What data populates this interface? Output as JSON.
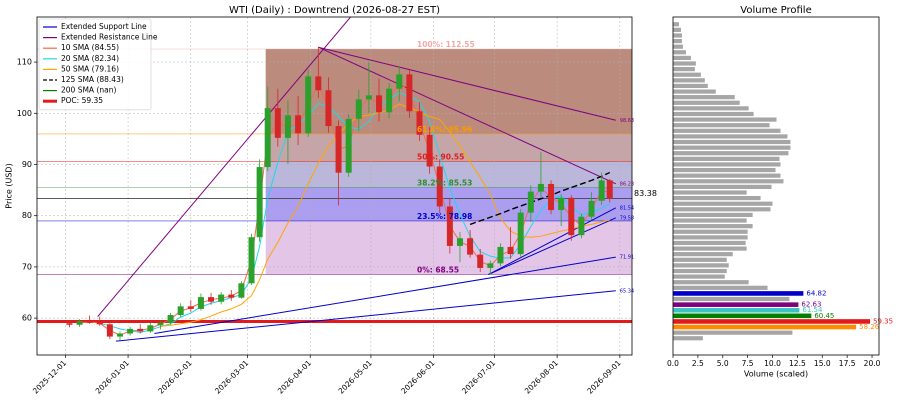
{
  "chart_data": [
    {
      "type": "candlestick",
      "title": "WTI (Daily) : Downtrend (2026-08-27 EST)",
      "y_label": "Price (USD)",
      "x": [
        "2025-12-03",
        "2025-12-08",
        "2025-12-13",
        "2025-12-18",
        "2025-12-23",
        "2025-12-28",
        "2026-01-02",
        "2026-01-07",
        "2026-01-12",
        "2026-01-17",
        "2026-01-22",
        "2026-01-27",
        "2026-02-01",
        "2026-02-06",
        "2026-02-11",
        "2026-02-16",
        "2026-02-21",
        "2026-02-26",
        "2026-03-03",
        "2026-03-07",
        "2026-03-11",
        "2026-03-16",
        "2026-03-21",
        "2026-03-26",
        "2026-03-31",
        "2026-04-05",
        "2026-04-10",
        "2026-04-15",
        "2026-04-20",
        "2026-04-25",
        "2026-04-30",
        "2026-05-05",
        "2026-05-10",
        "2026-05-15",
        "2026-05-20",
        "2026-05-25",
        "2026-05-30",
        "2026-06-04",
        "2026-06-09",
        "2026-06-14",
        "2026-06-19",
        "2026-06-24",
        "2026-06-29",
        "2026-07-04",
        "2026-07-09",
        "2026-07-14",
        "2026-07-19",
        "2026-07-24",
        "2026-07-29",
        "2026-08-03",
        "2026-08-08",
        "2026-08-13",
        "2026-08-18",
        "2026-08-23",
        "2026-08-27"
      ],
      "open": [
        59.0,
        58.7,
        59.4,
        59.2,
        58.8,
        56.4,
        57.0,
        57.9,
        57.4,
        58.6,
        59.1,
        60.6,
        62.3,
        61.8,
        64.1,
        63.2,
        64.6,
        64.0,
        66.8,
        75.8,
        89.5,
        101.0,
        95.2,
        99.6,
        96.1,
        107.2,
        104.5,
        97.5,
        88.4,
        98.9,
        102.7,
        103.5,
        100.2,
        104.8,
        107.6,
        100.4,
        95.8,
        89.6,
        81.8,
        74.1,
        75.6,
        72.4,
        69.8,
        70.7,
        73.9,
        72.5,
        80.6,
        84.7,
        86.2,
        81.1,
        83.5,
        76.2,
        79.8,
        82.9,
        86.9
      ],
      "high": [
        59.6,
        59.8,
        60.5,
        60.3,
        59.0,
        57.4,
        58.3,
        58.8,
        59.2,
        59.5,
        61.0,
        62.9,
        63.5,
        64.8,
        64.9,
        65.1,
        65.5,
        67.2,
        76.5,
        91.0,
        105.2,
        104.8,
        102.5,
        103.4,
        108.5,
        112.9,
        107.0,
        98.6,
        99.8,
        104.6,
        110.0,
        106.8,
        105.9,
        109.2,
        108.4,
        102.2,
        97.3,
        91.0,
        83.4,
        76.8,
        77.2,
        73.5,
        71.2,
        74.6,
        77.8,
        81.3,
        85.9,
        92.4,
        86.9,
        84.2,
        84.0,
        80.4,
        84.6,
        88.4,
        87.2
      ],
      "low": [
        58.2,
        58.3,
        58.9,
        58.5,
        55.9,
        55.6,
        56.6,
        57.0,
        57.1,
        57.8,
        58.7,
        60.2,
        61.2,
        61.5,
        62.6,
        62.7,
        63.4,
        63.8,
        66.5,
        74.9,
        88.7,
        93.5,
        90.1,
        93.8,
        95.4,
        103.0,
        96.2,
        82.0,
        87.6,
        96.5,
        100.1,
        98.4,
        99.0,
        102.3,
        99.1,
        94.6,
        88.2,
        80.5,
        72.6,
        70.9,
        71.8,
        69.0,
        68.5,
        70.1,
        71.6,
        72.0,
        78.8,
        83.5,
        80.3,
        78.0,
        75.1,
        75.6,
        79.1,
        82.1,
        82.6
      ],
      "close": [
        58.7,
        59.4,
        59.2,
        58.8,
        56.4,
        57.0,
        57.9,
        57.4,
        58.6,
        59.1,
        60.6,
        62.3,
        61.8,
        64.1,
        63.2,
        64.6,
        64.0,
        66.8,
        75.8,
        89.5,
        101.0,
        95.2,
        99.6,
        96.1,
        107.2,
        104.5,
        97.5,
        88.4,
        98.9,
        102.7,
        103.5,
        100.2,
        104.8,
        107.6,
        100.4,
        95.8,
        89.6,
        81.8,
        74.1,
        75.6,
        72.4,
        69.8,
        70.7,
        73.9,
        72.5,
        80.6,
        84.7,
        86.2,
        81.1,
        83.5,
        76.2,
        79.8,
        82.9,
        86.9,
        83.38
      ],
      "up_color": "#2ca02c",
      "down_color": "#d62728",
      "xlim": [
        "2025-11-17",
        "2026-09-07"
      ],
      "xticks": [
        "2025-12-01",
        "2026-01-01",
        "2026-02-01",
        "2026-03-01",
        "2026-04-01",
        "2026-05-01",
        "2026-06-01",
        "2026-07-01",
        "2026-08-01",
        "2026-09-01"
      ],
      "ylim": [
        52.8,
        118.8
      ],
      "yticks": [
        60,
        70,
        80,
        90,
        100,
        110
      ],
      "grid": true,
      "legend": "upper left",
      "trend_lines": [
        {
          "name": "Extended Support Line",
          "color": "#0000cd",
          "segments": [
            {
              "x": [
                "2025-12-26",
                "2026-08-30"
              ],
              "y": [
                55.5,
                65.34
              ]
            },
            {
              "x": [
                "2026-01-14",
                "2026-08-30"
              ],
              "y": [
                57.0,
                71.91
              ]
            },
            {
              "x": [
                "2026-06-28",
                "2026-08-30"
              ],
              "y": [
                68.5,
                79.58
              ]
            },
            {
              "x": [
                "2026-06-28",
                "2026-08-30"
              ],
              "y": [
                68.5,
                81.54
              ]
            }
          ]
        },
        {
          "name": "Extended Resistance Line",
          "color": "#800080",
          "segments": [
            {
              "x": [
                "2025-12-17",
                "2026-05-01"
              ],
              "y": [
                60.3,
                123.5
              ]
            },
            {
              "x": [
                "2026-04-05",
                "2026-08-30"
              ],
              "y": [
                112.9,
                98.63
              ]
            },
            {
              "x": [
                "2026-04-05",
                "2026-08-30"
              ],
              "y": [
                112.9,
                86.23
              ]
            }
          ]
        }
      ],
      "series": [
        {
          "name": "10 SMA (84.55)",
          "color": "#f4694a",
          "values": [
            null,
            59.0,
            59.3,
            59.0,
            57.6,
            56.7,
            57.5,
            57.6,
            58.0,
            58.8,
            59.8,
            61.4,
            62.0,
            63.0,
            63.6,
            63.9,
            64.3,
            65.4,
            71.3,
            82.6,
            95.2,
            98.1,
            97.4,
            97.8,
            101.6,
            105.8,
            101.0,
            93.0,
            93.6,
            100.8,
            103.1,
            101.8,
            102.5,
            106.2,
            104.0,
            98.1,
            92.7,
            85.7,
            78.0,
            74.9,
            74.0,
            71.1,
            70.2,
            72.3,
            73.2,
            76.5,
            82.6,
            85.4,
            83.6,
            82.3,
            79.8,
            78.0,
            81.3,
            84.9,
            84.55
          ]
        },
        {
          "name": "20 SMA (82.34)",
          "color": "#1ed8e8",
          "values": [
            null,
            null,
            null,
            59.0,
            58.5,
            57.9,
            57.5,
            57.2,
            57.7,
            58.3,
            58.9,
            60.2,
            61.0,
            62.2,
            62.9,
            63.4,
            64.0,
            64.6,
            67.8,
            74.0,
            83.3,
            90.4,
            96.3,
            98.0,
            99.5,
            101.9,
            101.3,
            99.4,
            97.3,
            96.9,
            98.4,
            101.3,
            102.8,
            104.0,
            103.3,
            102.2,
            98.4,
            91.9,
            85.3,
            80.3,
            76.0,
            73.0,
            72.1,
            71.7,
            71.8,
            74.4,
            77.9,
            81.0,
            83.2,
            83.9,
            81.8,
            80.2,
            80.6,
            81.5,
            82.34
          ]
        },
        {
          "name": "50 SMA (79.16)",
          "color": "#ffa500",
          "values": [
            null,
            null,
            null,
            null,
            null,
            null,
            null,
            null,
            null,
            58.4,
            58.6,
            58.9,
            59.2,
            59.7,
            60.4,
            61.2,
            61.8,
            62.7,
            64.4,
            67.5,
            71.5,
            74.8,
            78.6,
            81.8,
            86.2,
            90.2,
            93.6,
            95.8,
            98.1,
            99.4,
            99.6,
            100.1,
            100.6,
            101.8,
            101.1,
            100.2,
            99.4,
            98.8,
            96.3,
            93.6,
            90.5,
            87.5,
            84.1,
            79.5,
            77.0,
            76.0,
            75.8,
            76.0,
            76.5,
            77.0,
            77.4,
            77.9,
            78.3,
            78.8,
            79.16
          ]
        },
        {
          "name": "125 SMA (88.43)",
          "color": "#000000",
          "dash": true,
          "values": [
            null,
            null,
            null,
            null,
            null,
            null,
            null,
            null,
            null,
            null,
            null,
            null,
            null,
            null,
            null,
            null,
            null,
            null,
            null,
            null,
            null,
            null,
            null,
            null,
            null,
            null,
            null,
            null,
            null,
            null,
            null,
            null,
            null,
            null,
            null,
            null,
            null,
            null,
            null,
            null,
            78.3,
            79.0,
            79.7,
            80.4,
            81.2,
            81.9,
            82.6,
            83.3,
            84.0,
            84.8,
            85.5,
            86.2,
            86.9,
            87.7,
            88.43
          ]
        },
        {
          "name": "200 SMA (nan)",
          "color": "#008000",
          "values": [
            null,
            null,
            null,
            null,
            null,
            null,
            null,
            null,
            null,
            null,
            null,
            null,
            null,
            null,
            null,
            null,
            null,
            null,
            null,
            null,
            null,
            null,
            null,
            null,
            null,
            null,
            null,
            null,
            null,
            null,
            null,
            null,
            null,
            null,
            null,
            null,
            null,
            null,
            null,
            null,
            null,
            null,
            null,
            null,
            null,
            null,
            null,
            null,
            null,
            null,
            null,
            null,
            null,
            null,
            null
          ]
        }
      ],
      "poc": {
        "name": "POC: 59.35",
        "value": 59.35,
        "color": "#e31a1c"
      },
      "last_price": 83.38,
      "fib_start": "2026-03-10",
      "fib_levels": [
        {
          "label": "100%: 112.55",
          "value": 112.55,
          "color": "#f4a8a8",
          "fill": "#bb8b7e"
        },
        {
          "label": "61.8%: 95.96",
          "value": 95.96,
          "color": "#ff9900",
          "fill": "#c6a5a8"
        },
        {
          "label": "50%: 90.55",
          "value": 90.55,
          "color": "#e31a1c",
          "fill": "#bab7da"
        },
        {
          "label": "38.2%: 85.53",
          "value": 85.53,
          "color": "#2e8b2e",
          "fill": "#ab9ef0"
        },
        {
          "label": "23.5%: 78.98",
          "value": 78.98,
          "color": "#0000cd",
          "fill": "#e3c5e7"
        },
        {
          "label": "0%: 68.55",
          "value": 68.55,
          "color": "#800080",
          "fill": null
        }
      ]
    },
    {
      "type": "bar",
      "orientation": "horizontal",
      "title": "Volume Profile",
      "x_label": "Volume (scaled)",
      "levels": [
        56.07,
        57.16,
        63.73,
        65.92,
        67.01,
        68.11,
        69.2,
        70.3,
        71.39,
        72.49,
        73.58,
        74.68,
        75.77,
        76.87,
        77.96,
        79.06,
        80.15,
        81.25,
        82.34,
        83.44,
        84.53,
        85.63,
        86.72,
        87.82,
        88.91,
        90.01,
        91.1,
        92.2,
        93.29,
        94.39,
        95.48,
        96.58,
        97.67,
        98.77,
        99.86,
        100.96,
        102.05,
        103.15,
        104.24,
        105.34,
        106.43,
        107.53,
        108.62,
        109.72,
        110.81,
        111.91,
        113.0,
        114.1,
        115.19,
        116.29,
        117.38
      ],
      "values": [
        3.0,
        12.0,
        11.7,
        9.5,
        7.6,
        5.2,
        5.4,
        5.6,
        5.4,
        6.0,
        7.4,
        7.3,
        7.5,
        7.5,
        8.0,
        7.4,
        8.0,
        9.8,
        10.0,
        8.8,
        7.4,
        9.9,
        11.1,
        10.8,
        10.3,
        10.8,
        10.7,
        11.6,
        11.8,
        11.8,
        11.5,
        10.8,
        9.7,
        10.4,
        8.1,
        7.6,
        6.7,
        6.2,
        4.3,
        3.5,
        3.2,
        2.8,
        2.2,
        2.3,
        1.8,
        1.3,
        1.0,
        0.9,
        0.9,
        0.8,
        0.6
      ],
      "color": "#a6a6a6",
      "highlights": [
        {
          "level": 58.26,
          "value": 18.4,
          "color": "#ff8c00"
        },
        {
          "level": 59.35,
          "value": 19.8,
          "color": "#e31a1c"
        },
        {
          "level": 60.45,
          "value": 13.9,
          "color": "#008000"
        },
        {
          "level": 61.54,
          "value": 12.7,
          "color": "#3cc4c4"
        },
        {
          "level": 62.63,
          "value": 12.6,
          "color": "#800080"
        },
        {
          "level": 64.82,
          "value": 13.1,
          "color": "#0000cd"
        }
      ],
      "xlim": [
        0,
        20.7
      ],
      "xticks": [
        {
          "value": 0,
          "label": "0.0"
        },
        2.5,
        {
          "value": 5,
          "label": "5.0"
        },
        7.5,
        {
          "value": 10,
          "label": "10.0"
        },
        12.5,
        {
          "value": 15,
          "label": "15.0"
        },
        17.5,
        {
          "value": 20,
          "label": "20.0"
        }
      ],
      "ylim": [
        52.8,
        118.8
      ]
    }
  ]
}
